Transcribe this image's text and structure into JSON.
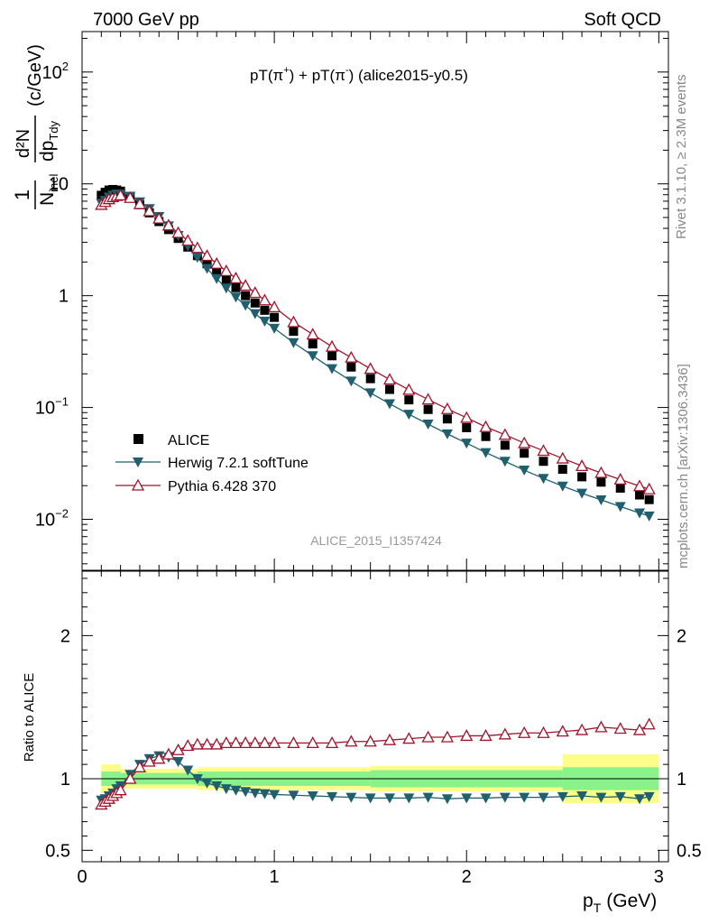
{
  "header": {
    "left": "7000 GeV pp",
    "right": "Soft QCD"
  },
  "side": {
    "rivet": "Rivet 3.1.10, ≥ 2.3M events",
    "mcplots": "mcplots.cern.ch [arXiv:1306.3436]"
  },
  "watermark": "ALICE_2015_I1357424",
  "colors": {
    "data": "#000000",
    "herwig": "#1f5f6e",
    "pythia": "#a0132b",
    "band_stat": "#8af28a",
    "band_syst": "#fdfd8a"
  },
  "chart_data": [
    {
      "type": "scatter",
      "scale": "log",
      "title": "pT(π⁺) + pT(π⁻) (alice2015-y0.5)",
      "title_parts": [
        "pT(π",
        "+",
        ") + pT(π",
        "-",
        ") (alice2015-y0.5)"
      ],
      "ylabel_parts": [
        "1",
        "N",
        "inel",
        "d²N",
        "dp",
        "Tdy",
        "(c/GeV)"
      ],
      "xlim": [
        0,
        3.05
      ],
      "ylim": [
        0.0035,
        230
      ],
      "yticks": [
        {
          "value": 0.01,
          "base": "10",
          "exp": "−2"
        },
        {
          "value": 0.1,
          "base": "10",
          "exp": "−1"
        },
        {
          "value": 1,
          "base": "1",
          "exp": ""
        },
        {
          "value": 10,
          "base": "10",
          "exp": ""
        },
        {
          "value": 100,
          "base": "10",
          "exp": "2"
        }
      ],
      "legend": [
        {
          "name": "ALICE",
          "marker": "square"
        },
        {
          "name": "Herwig 7.2.1 softTune",
          "marker": "triangle-down"
        },
        {
          "name": "Pythia 6.428 370",
          "marker": "triangle-up-open"
        }
      ],
      "x": [
        0.1,
        0.12,
        0.14,
        0.16,
        0.18,
        0.2,
        0.25,
        0.3,
        0.35,
        0.4,
        0.45,
        0.5,
        0.55,
        0.6,
        0.65,
        0.7,
        0.75,
        0.8,
        0.85,
        0.9,
        0.95,
        1.0,
        1.1,
        1.2,
        1.3,
        1.4,
        1.5,
        1.6,
        1.7,
        1.8,
        1.9,
        2.0,
        2.1,
        2.2,
        2.3,
        2.4,
        2.5,
        2.6,
        2.7,
        2.8,
        2.9,
        2.95
      ],
      "series": [
        {
          "name": "ALICE",
          "values": [
            7.9,
            8.4,
            8.8,
            8.9,
            8.8,
            8.6,
            7.6,
            6.5,
            5.5,
            4.6,
            3.9,
            3.25,
            2.72,
            2.28,
            1.93,
            1.63,
            1.38,
            1.18,
            1.0,
            0.86,
            0.74,
            0.64,
            0.48,
            0.37,
            0.29,
            0.23,
            0.181,
            0.145,
            0.117,
            0.096,
            0.079,
            0.066,
            0.055,
            0.046,
            0.039,
            0.033,
            0.028,
            0.024,
            0.0215,
            0.019,
            0.0165,
            0.015
          ]
        },
        {
          "name": "Herwig 7.2.1 softTune",
          "values": [
            6.7,
            7.1,
            7.6,
            7.9,
            8.1,
            8.1,
            7.75,
            6.9,
            6.0,
            5.1,
            4.2,
            3.45,
            2.78,
            2.2,
            1.75,
            1.42,
            1.17,
            0.97,
            0.82,
            0.69,
            0.59,
            0.51,
            0.38,
            0.29,
            0.222,
            0.172,
            0.135,
            0.108,
            0.087,
            0.071,
            0.058,
            0.048,
            0.0395,
            0.033,
            0.0275,
            0.0232,
            0.0198,
            0.0171,
            0.0149,
            0.013,
            0.0114,
            0.0107
          ]
        },
        {
          "name": "Pythia 6.428 370",
          "values": [
            6.5,
            6.9,
            7.3,
            7.6,
            7.8,
            7.9,
            7.5,
            6.6,
            5.7,
            4.9,
            4.25,
            3.65,
            3.1,
            2.67,
            2.27,
            1.93,
            1.66,
            1.43,
            1.23,
            1.06,
            0.91,
            0.79,
            0.58,
            0.45,
            0.35,
            0.28,
            0.222,
            0.178,
            0.144,
            0.118,
            0.097,
            0.081,
            0.067,
            0.057,
            0.048,
            0.041,
            0.035,
            0.03,
            0.026,
            0.0227,
            0.0198,
            0.0186
          ]
        }
      ]
    },
    {
      "type": "scatter",
      "ylabel": "Ratio to ALICE",
      "xlabel_parts": [
        "p",
        "T",
        "(GeV)"
      ],
      "xlim": [
        0,
        3.05
      ],
      "ylim": [
        0.42,
        2.45
      ],
      "xticks": [
        "0",
        "1",
        "2",
        "3"
      ],
      "yticks": [
        "0.5",
        "1",
        "2"
      ],
      "bands": [
        {
          "x0": 0.1,
          "x1": 0.2,
          "stat": [
            0.95,
            1.05
          ],
          "syst": [
            0.9,
            1.1
          ]
        },
        {
          "x0": 0.2,
          "x1": 0.6,
          "stat": [
            0.96,
            1.04
          ],
          "syst": [
            0.93,
            1.07
          ]
        },
        {
          "x0": 0.6,
          "x1": 1.5,
          "stat": [
            0.95,
            1.05
          ],
          "syst": [
            0.92,
            1.08
          ]
        },
        {
          "x0": 1.5,
          "x1": 2.5,
          "stat": [
            0.94,
            1.06
          ],
          "syst": [
            0.91,
            1.09
          ]
        },
        {
          "x0": 2.5,
          "x1": 3.0,
          "stat": [
            0.92,
            1.08
          ],
          "syst": [
            0.83,
            1.17
          ]
        }
      ],
      "x": [
        0.1,
        0.12,
        0.14,
        0.16,
        0.18,
        0.2,
        0.25,
        0.3,
        0.35,
        0.4,
        0.45,
        0.5,
        0.55,
        0.6,
        0.65,
        0.7,
        0.75,
        0.8,
        0.85,
        0.9,
        0.95,
        1.0,
        1.1,
        1.2,
        1.3,
        1.4,
        1.5,
        1.6,
        1.7,
        1.8,
        1.9,
        2.0,
        2.1,
        2.2,
        2.3,
        2.4,
        2.5,
        2.6,
        2.7,
        2.8,
        2.9,
        2.95
      ],
      "series": [
        {
          "name": "Herwig 7.2.1 softTune",
          "values": [
            0.85,
            0.86,
            0.88,
            0.9,
            0.93,
            0.95,
            1.03,
            1.1,
            1.14,
            1.16,
            1.15,
            1.12,
            1.06,
            1.0,
            0.97,
            0.95,
            0.93,
            0.92,
            0.91,
            0.9,
            0.895,
            0.89,
            0.885,
            0.88,
            0.875,
            0.87,
            0.865,
            0.865,
            0.865,
            0.87,
            0.86,
            0.865,
            0.865,
            0.87,
            0.87,
            0.87,
            0.875,
            0.88,
            0.87,
            0.875,
            0.86,
            0.875
          ]
        },
        {
          "name": "Pythia 6.428 370",
          "values": [
            0.82,
            0.84,
            0.86,
            0.88,
            0.9,
            0.92,
            1.0,
            1.08,
            1.12,
            1.14,
            1.17,
            1.2,
            1.23,
            1.24,
            1.24,
            1.24,
            1.25,
            1.25,
            1.25,
            1.25,
            1.25,
            1.25,
            1.25,
            1.25,
            1.25,
            1.26,
            1.26,
            1.27,
            1.28,
            1.29,
            1.29,
            1.3,
            1.3,
            1.31,
            1.32,
            1.32,
            1.33,
            1.34,
            1.36,
            1.35,
            1.34,
            1.38
          ]
        }
      ]
    }
  ]
}
